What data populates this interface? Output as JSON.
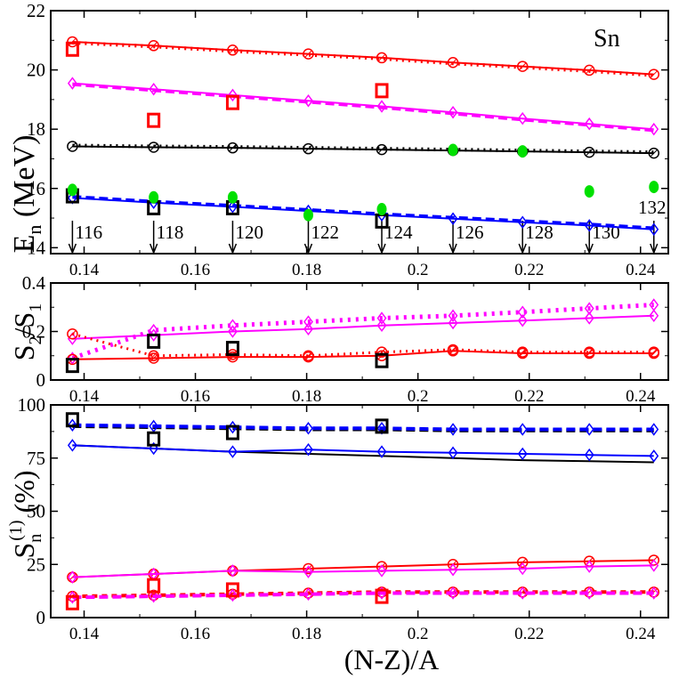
{
  "chart_data": [
    {
      "type": "line",
      "panel": "top",
      "title": "",
      "ylabel_main": "E",
      "ylabel_sub": "n",
      "ylabel_unit": "(MeV)",
      "annotation": "Sn",
      "xlim": [
        0.134,
        0.245
      ],
      "ylim": [
        13.8,
        22
      ],
      "yticks": [
        14,
        16,
        18,
        20,
        22
      ],
      "grid": false,
      "series": [
        {
          "name": "red-solid",
          "color": "#ff0000",
          "marker": "circle",
          "dash": "",
          "x": [
            0.1379,
            0.1525,
            0.1667,
            0.1803,
            0.1935,
            0.2063,
            0.2188,
            0.2308,
            0.2424
          ],
          "y": [
            20.95,
            20.82,
            20.67,
            20.54,
            20.41,
            20.25,
            20.12,
            19.99,
            19.85
          ]
        },
        {
          "name": "red-dotted",
          "color": "#ff0000",
          "marker": "",
          "dash": "2,5",
          "width": 4,
          "x": [
            0.1379,
            0.1525,
            0.1667,
            0.1803,
            0.1935,
            0.2063,
            0.2188,
            0.2308,
            0.2424
          ],
          "y": [
            20.92,
            20.79,
            20.64,
            20.51,
            20.38,
            20.22,
            20.09,
            19.96,
            19.82
          ]
        },
        {
          "name": "magenta-solid",
          "color": "#ff00ff",
          "marker": "diamond",
          "dash": "",
          "x": [
            0.1379,
            0.1525,
            0.1667,
            0.1803,
            0.1935,
            0.2063,
            0.2188,
            0.2308,
            0.2424
          ],
          "y": [
            19.55,
            19.35,
            19.15,
            18.96,
            18.77,
            18.57,
            18.36,
            18.18,
            18.0
          ]
        },
        {
          "name": "magenta-dashed",
          "color": "#ff00ff",
          "marker": "",
          "dash": "10,5",
          "width": 3,
          "x": [
            0.1379,
            0.1525,
            0.1667,
            0.1803,
            0.1935,
            0.2063,
            0.2188,
            0.2308,
            0.2424
          ],
          "y": [
            19.5,
            19.3,
            19.1,
            18.91,
            18.72,
            18.52,
            18.31,
            18.13,
            17.95
          ]
        },
        {
          "name": "black-solid",
          "color": "#000000",
          "marker": "circle",
          "dash": "",
          "x": [
            0.1379,
            0.1525,
            0.1667,
            0.1803,
            0.1935,
            0.2063,
            0.2188,
            0.2308,
            0.2424
          ],
          "y": [
            17.42,
            17.39,
            17.37,
            17.34,
            17.31,
            17.28,
            17.25,
            17.22,
            17.19
          ]
        },
        {
          "name": "black-dotted",
          "color": "#000000",
          "marker": "",
          "dash": "2,5",
          "width": 4,
          "x": [
            0.1379,
            0.1525,
            0.1667,
            0.1803,
            0.1935,
            0.2063,
            0.2188,
            0.2308,
            0.2424
          ],
          "y": [
            17.45,
            17.42,
            17.4,
            17.37,
            17.34,
            17.31,
            17.28,
            17.25,
            17.22
          ]
        },
        {
          "name": "blue-solid",
          "color": "#0000ff",
          "marker": "diamond",
          "dash": "",
          "x": [
            0.1379,
            0.1525,
            0.1667,
            0.1803,
            0.1935,
            0.2063,
            0.2188,
            0.2308,
            0.2424
          ],
          "y": [
            15.68,
            15.52,
            15.38,
            15.24,
            15.1,
            14.98,
            14.86,
            14.75,
            14.62
          ]
        },
        {
          "name": "blue-dashed",
          "color": "#0000ff",
          "marker": "",
          "dash": "10,5",
          "width": 3,
          "x": [
            0.1379,
            0.1525,
            0.1667,
            0.1803,
            0.1935,
            0.2063,
            0.2188,
            0.2308,
            0.2424
          ],
          "y": [
            15.73,
            15.57,
            15.43,
            15.29,
            15.15,
            15.03,
            14.91,
            14.8,
            14.67
          ]
        }
      ],
      "exp_points": [
        {
          "name": "exp-red-squares",
          "color": "#ff0000",
          "x": [
            0.1379,
            0.1525,
            0.1667,
            0.1935
          ],
          "y": [
            20.7,
            18.3,
            18.9,
            19.3
          ]
        },
        {
          "name": "exp-black-squares",
          "color": "#000000",
          "x": [
            0.1379,
            0.1525,
            0.1667,
            0.1935
          ],
          "y": [
            15.75,
            15.35,
            15.35,
            14.9
          ]
        }
      ],
      "green_points": {
        "name": "green-dots",
        "color": "#00e000",
        "x": [
          0.1379,
          0.1525,
          0.1667,
          0.1803,
          0.1935,
          0.2063,
          0.2188,
          0.2308,
          0.2424
        ],
        "y": [
          15.95,
          15.7,
          15.7,
          15.1,
          15.3,
          17.3,
          17.25,
          15.9,
          16.05
        ]
      },
      "arrows": {
        "x": [
          0.1379,
          0.1525,
          0.1667,
          0.1803,
          0.1935,
          0.2063,
          0.2188,
          0.2308,
          0.2424
        ],
        "labels": [
          "116",
          "118",
          "120",
          "122",
          "124",
          "126",
          "128",
          "130",
          "132"
        ]
      }
    },
    {
      "type": "line",
      "panel": "middle",
      "ylabel_main": "S",
      "ylabel_sub1": "2",
      "ylabel_mid": "/S",
      "ylabel_sub2": "1",
      "xlim": [
        0.134,
        0.245
      ],
      "ylim": [
        0,
        0.4
      ],
      "yticks": [
        0,
        0.2,
        0.4
      ],
      "ytick_labels": [
        "0",
        "0.2",
        "0.4"
      ],
      "series": [
        {
          "name": "magenta-solid",
          "color": "#ff00ff",
          "marker": "diamond",
          "dash": "",
          "x": [
            0.1379,
            0.1525,
            0.1667,
            0.1803,
            0.1935,
            0.2063,
            0.2188,
            0.2308,
            0.2424
          ],
          "y": [
            0.17,
            0.185,
            0.2,
            0.21,
            0.225,
            0.235,
            0.245,
            0.255,
            0.265
          ]
        },
        {
          "name": "magenta-dotted",
          "color": "#ff00ff",
          "marker": "diamond",
          "dash": "3,6",
          "width": 5,
          "x": [
            0.1379,
            0.1525,
            0.1667,
            0.1803,
            0.1935,
            0.2063,
            0.2188,
            0.2308,
            0.2424
          ],
          "y": [
            0.09,
            0.205,
            0.225,
            0.24,
            0.255,
            0.265,
            0.28,
            0.295,
            0.31
          ]
        },
        {
          "name": "red-solid",
          "color": "#ff0000",
          "marker": "circle",
          "dash": "",
          "x": [
            0.1379,
            0.1525,
            0.1667,
            0.1803,
            0.1935,
            0.2063,
            0.2188,
            0.2308,
            0.2424
          ],
          "y": [
            0.085,
            0.09,
            0.095,
            0.095,
            0.1,
            0.12,
            0.11,
            0.11,
            0.11
          ]
        },
        {
          "name": "red-dotted",
          "color": "#ff0000",
          "marker": "circle",
          "dash": "2,5",
          "width": 3,
          "x": [
            0.1379,
            0.1525,
            0.1667,
            0.1803,
            0.1935,
            0.2063,
            0.2188,
            0.2308,
            0.2424
          ],
          "y": [
            0.19,
            0.1,
            0.105,
            0.1,
            0.115,
            0.125,
            0.115,
            0.115,
            0.115
          ]
        }
      ],
      "exp_points": [
        {
          "name": "exp-black-squares",
          "color": "#000000",
          "x": [
            0.1379,
            0.1525,
            0.1667,
            0.1935
          ],
          "y": [
            0.06,
            0.16,
            0.13,
            0.08
          ]
        }
      ]
    },
    {
      "type": "line",
      "panel": "bottom",
      "ylabel_main": "S",
      "ylabel_sub": "n",
      "ylabel_sup": "(1)",
      "ylabel_unit": "(%)",
      "xlabel": "(N-Z)/A",
      "xlim": [
        0.134,
        0.245
      ],
      "ylim": [
        0,
        100
      ],
      "yticks": [
        0,
        25,
        50,
        75,
        100
      ],
      "xticks": [
        0.14,
        0.16,
        0.18,
        0.2,
        0.22,
        0.24
      ],
      "xtick_labels": [
        "0.14",
        "0.16",
        "0.18",
        "0.2",
        "0.22",
        "0.24"
      ],
      "series": [
        {
          "name": "black-dashed",
          "color": "#000000",
          "marker": "",
          "dash": "10,5",
          "width": 4,
          "x": [
            0.1379,
            0.1525,
            0.1667,
            0.1803,
            0.1935,
            0.2063,
            0.2188,
            0.2308,
            0.2424
          ],
          "y": [
            90,
            89.5,
            89,
            88.5,
            88.5,
            88,
            88,
            88,
            88
          ]
        },
        {
          "name": "blue-dashed",
          "color": "#0000ff",
          "marker": "diamond",
          "dash": "10,5",
          "width": 4,
          "x": [
            0.1379,
            0.1525,
            0.1667,
            0.1803,
            0.1935,
            0.2063,
            0.2188,
            0.2308,
            0.2424
          ],
          "y": [
            90.5,
            90,
            89.5,
            89,
            89,
            88.5,
            88.5,
            88.5,
            88.5
          ]
        },
        {
          "name": "black-solid",
          "color": "#000000",
          "marker": "",
          "dash": "",
          "x": [
            0.1379,
            0.1525,
            0.1667,
            0.1803,
            0.1935,
            0.2063,
            0.2188,
            0.2308,
            0.2424
          ],
          "y": [
            81,
            79.5,
            78,
            77,
            76,
            75,
            74,
            73.5,
            73
          ]
        },
        {
          "name": "blue-solid",
          "color": "#0000ff",
          "marker": "diamond",
          "dash": "",
          "x": [
            0.1379,
            0.1525,
            0.1667,
            0.1803,
            0.1935,
            0.2063,
            0.2188,
            0.2308,
            0.2424
          ],
          "y": [
            81,
            79.5,
            78,
            79,
            78,
            77.5,
            77,
            76.5,
            76
          ]
        },
        {
          "name": "red-solid",
          "color": "#ff0000",
          "marker": "circle",
          "dash": "",
          "x": [
            0.1379,
            0.1525,
            0.1667,
            0.1803,
            0.1935,
            0.2063,
            0.2188,
            0.2308,
            0.2424
          ],
          "y": [
            19,
            20.5,
            22,
            23,
            24,
            25,
            26,
            26.5,
            27
          ]
        },
        {
          "name": "magenta-solid",
          "color": "#ff00ff",
          "marker": "diamond",
          "dash": "",
          "x": [
            0.1379,
            0.1525,
            0.1667,
            0.1803,
            0.1935,
            0.2063,
            0.2188,
            0.2308,
            0.2424
          ],
          "y": [
            19,
            20.5,
            22,
            21.5,
            22,
            22.5,
            23,
            24,
            24.5
          ]
        },
        {
          "name": "red-dashed",
          "color": "#ff0000",
          "marker": "circle",
          "dash": "6,5",
          "width": 4,
          "x": [
            0.1379,
            0.1525,
            0.1667,
            0.1803,
            0.1935,
            0.2063,
            0.2188,
            0.2308,
            0.2424
          ],
          "y": [
            10,
            10.5,
            11,
            11.5,
            12,
            12,
            12,
            12,
            12
          ]
        },
        {
          "name": "magenta-dashed",
          "color": "#ff00ff",
          "marker": "diamond",
          "dash": "10,5",
          "width": 4,
          "x": [
            0.1379,
            0.1525,
            0.1667,
            0.1803,
            0.1935,
            0.2063,
            0.2188,
            0.2308,
            0.2424
          ],
          "y": [
            9.5,
            10,
            10.5,
            11,
            11.5,
            11.5,
            11.5,
            11.5,
            11.5
          ]
        }
      ],
      "exp_points": [
        {
          "name": "exp-black-squares",
          "color": "#000000",
          "x": [
            0.1379,
            0.1525,
            0.1667,
            0.1935
          ],
          "y": [
            93,
            84,
            87,
            90
          ]
        },
        {
          "name": "exp-red-squares",
          "color": "#ff0000",
          "x": [
            0.1379,
            0.1525,
            0.1667,
            0.1935
          ],
          "y": [
            7,
            15,
            13,
            10
          ]
        }
      ]
    }
  ]
}
